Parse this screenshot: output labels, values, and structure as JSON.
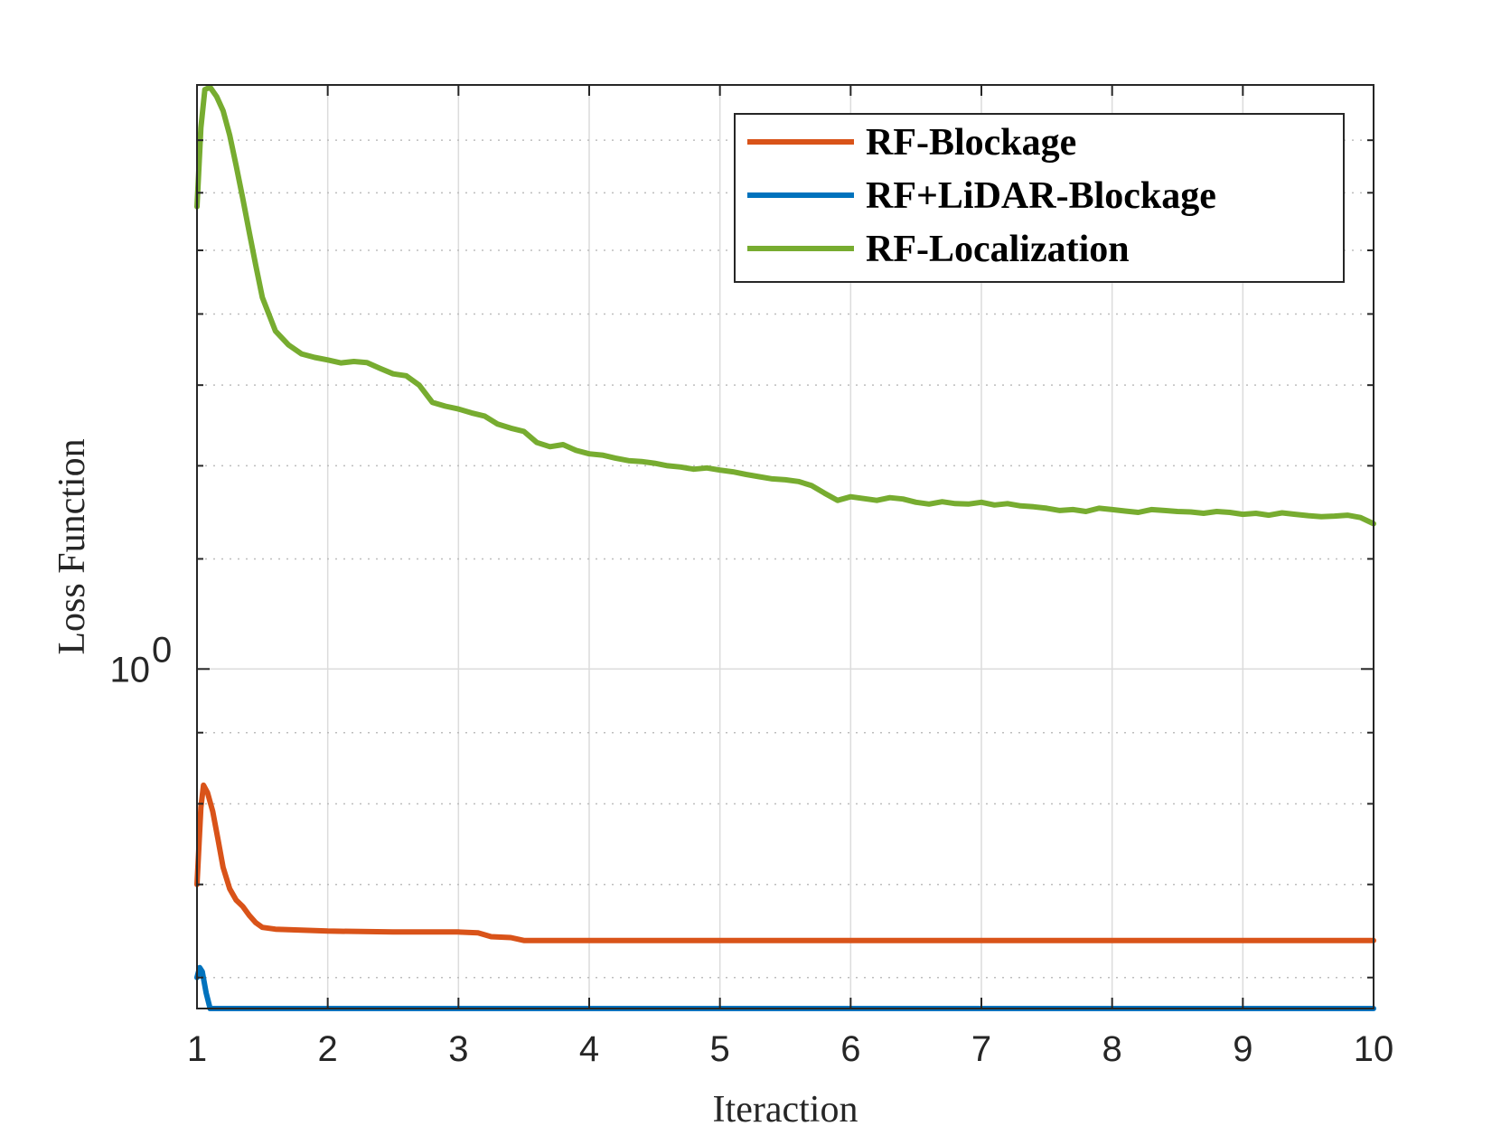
{
  "chart_data": {
    "type": "line",
    "xlabel": "Iteraction",
    "ylabel": "Loss Function",
    "xlim": [
      1,
      10
    ],
    "ylim": [
      0.57,
      2.63
    ],
    "yscale": "log",
    "xticks": [
      "1",
      "2",
      "3",
      "4",
      "5",
      "6",
      "7",
      "8",
      "9",
      "10"
    ],
    "yticks": [
      {
        "base": "10",
        "exp": "0",
        "value": 1
      }
    ],
    "grid": true,
    "legend_position": "top-right",
    "series": [
      {
        "name": "RF-Blockage",
        "color": "#D95319",
        "x": [
          1.0,
          1.03,
          1.05,
          1.08,
          1.12,
          1.16,
          1.2,
          1.25,
          1.3,
          1.35,
          1.4,
          1.45,
          1.5,
          1.6,
          1.8,
          2.0,
          2.5,
          3.0,
          3.15,
          3.25,
          3.4,
          3.5,
          3.7,
          4.0,
          5.0,
          6.0,
          7.0,
          8.0,
          9.0,
          10.0
        ],
        "y": [
          0.7,
          0.795,
          0.825,
          0.815,
          0.79,
          0.755,
          0.72,
          0.695,
          0.682,
          0.675,
          0.665,
          0.657,
          0.652,
          0.65,
          0.649,
          0.648,
          0.647,
          0.647,
          0.646,
          0.642,
          0.641,
          0.638,
          0.638,
          0.638,
          0.638,
          0.638,
          0.638,
          0.638,
          0.638,
          0.638
        ]
      },
      {
        "name": "RF+LiDAR-Blockage",
        "color": "#0072BD",
        "x": [
          1.0,
          1.02,
          1.04,
          1.07,
          1.1,
          1.2,
          2.0,
          4.0,
          6.0,
          8.0,
          10.0
        ],
        "y": [
          0.6,
          0.61,
          0.606,
          0.585,
          0.57,
          0.57,
          0.57,
          0.57,
          0.57,
          0.57,
          0.57
        ]
      },
      {
        "name": "RF-Localization",
        "color": "#77AC30",
        "x": [
          1.0,
          1.03,
          1.06,
          1.1,
          1.15,
          1.2,
          1.25,
          1.3,
          1.35,
          1.4,
          1.45,
          1.5,
          1.6,
          1.7,
          1.8,
          1.9,
          2.0,
          2.1,
          2.2,
          2.3,
          2.4,
          2.5,
          2.6,
          2.7,
          2.8,
          2.9,
          3.0,
          3.1,
          3.2,
          3.3,
          3.4,
          3.5,
          3.6,
          3.7,
          3.8,
          3.9,
          4.0,
          4.1,
          4.2,
          4.3,
          4.4,
          4.5,
          4.6,
          4.7,
          4.8,
          4.9,
          5.0,
          5.1,
          5.2,
          5.3,
          5.4,
          5.5,
          5.6,
          5.7,
          5.8,
          5.9,
          6.0,
          6.1,
          6.2,
          6.3,
          6.4,
          6.5,
          6.6,
          6.7,
          6.8,
          6.9,
          7.0,
          7.1,
          7.2,
          7.3,
          7.4,
          7.5,
          7.6,
          7.7,
          7.8,
          7.9,
          8.0,
          8.1,
          8.2,
          8.3,
          8.4,
          8.5,
          8.6,
          8.7,
          8.8,
          8.9,
          9.0,
          9.1,
          9.2,
          9.3,
          9.4,
          9.5,
          9.6,
          9.7,
          9.8,
          9.9,
          10.0
        ],
        "y": [
          2.15,
          2.45,
          2.61,
          2.62,
          2.58,
          2.52,
          2.42,
          2.3,
          2.18,
          2.06,
          1.95,
          1.85,
          1.75,
          1.71,
          1.685,
          1.675,
          1.668,
          1.66,
          1.664,
          1.661,
          1.645,
          1.63,
          1.625,
          1.6,
          1.555,
          1.545,
          1.538,
          1.528,
          1.52,
          1.5,
          1.49,
          1.482,
          1.455,
          1.445,
          1.45,
          1.436,
          1.428,
          1.425,
          1.418,
          1.412,
          1.41,
          1.406,
          1.4,
          1.397,
          1.392,
          1.395,
          1.39,
          1.386,
          1.38,
          1.375,
          1.37,
          1.368,
          1.364,
          1.355,
          1.338,
          1.322,
          1.33,
          1.326,
          1.322,
          1.328,
          1.325,
          1.318,
          1.314,
          1.319,
          1.315,
          1.314,
          1.318,
          1.312,
          1.315,
          1.31,
          1.308,
          1.305,
          1.3,
          1.302,
          1.298,
          1.305,
          1.302,
          1.299,
          1.296,
          1.302,
          1.3,
          1.298,
          1.297,
          1.294,
          1.298,
          1.296,
          1.292,
          1.294,
          1.29,
          1.295,
          1.292,
          1.289,
          1.287,
          1.288,
          1.29,
          1.285,
          1.272
        ]
      }
    ]
  }
}
